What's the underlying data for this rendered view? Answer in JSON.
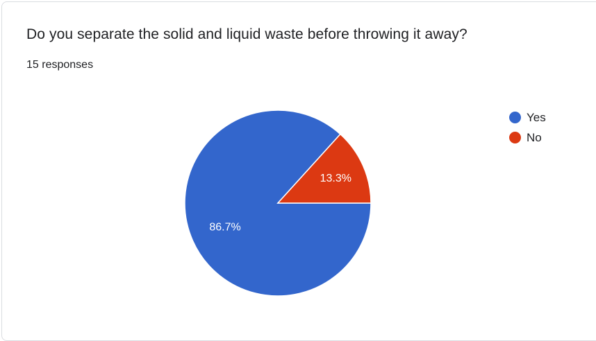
{
  "question": {
    "title": "Do you separate the solid and liquid waste before throwing it away?",
    "responses_text": "15 responses"
  },
  "chart_data": {
    "type": "pie",
    "title": "",
    "categories": [
      "Yes",
      "No"
    ],
    "values": [
      86.7,
      13.3
    ],
    "value_labels": [
      "86.7%",
      "13.3%"
    ],
    "colors": [
      "#3366cc",
      "#dc3912"
    ],
    "legend_position": "right"
  }
}
